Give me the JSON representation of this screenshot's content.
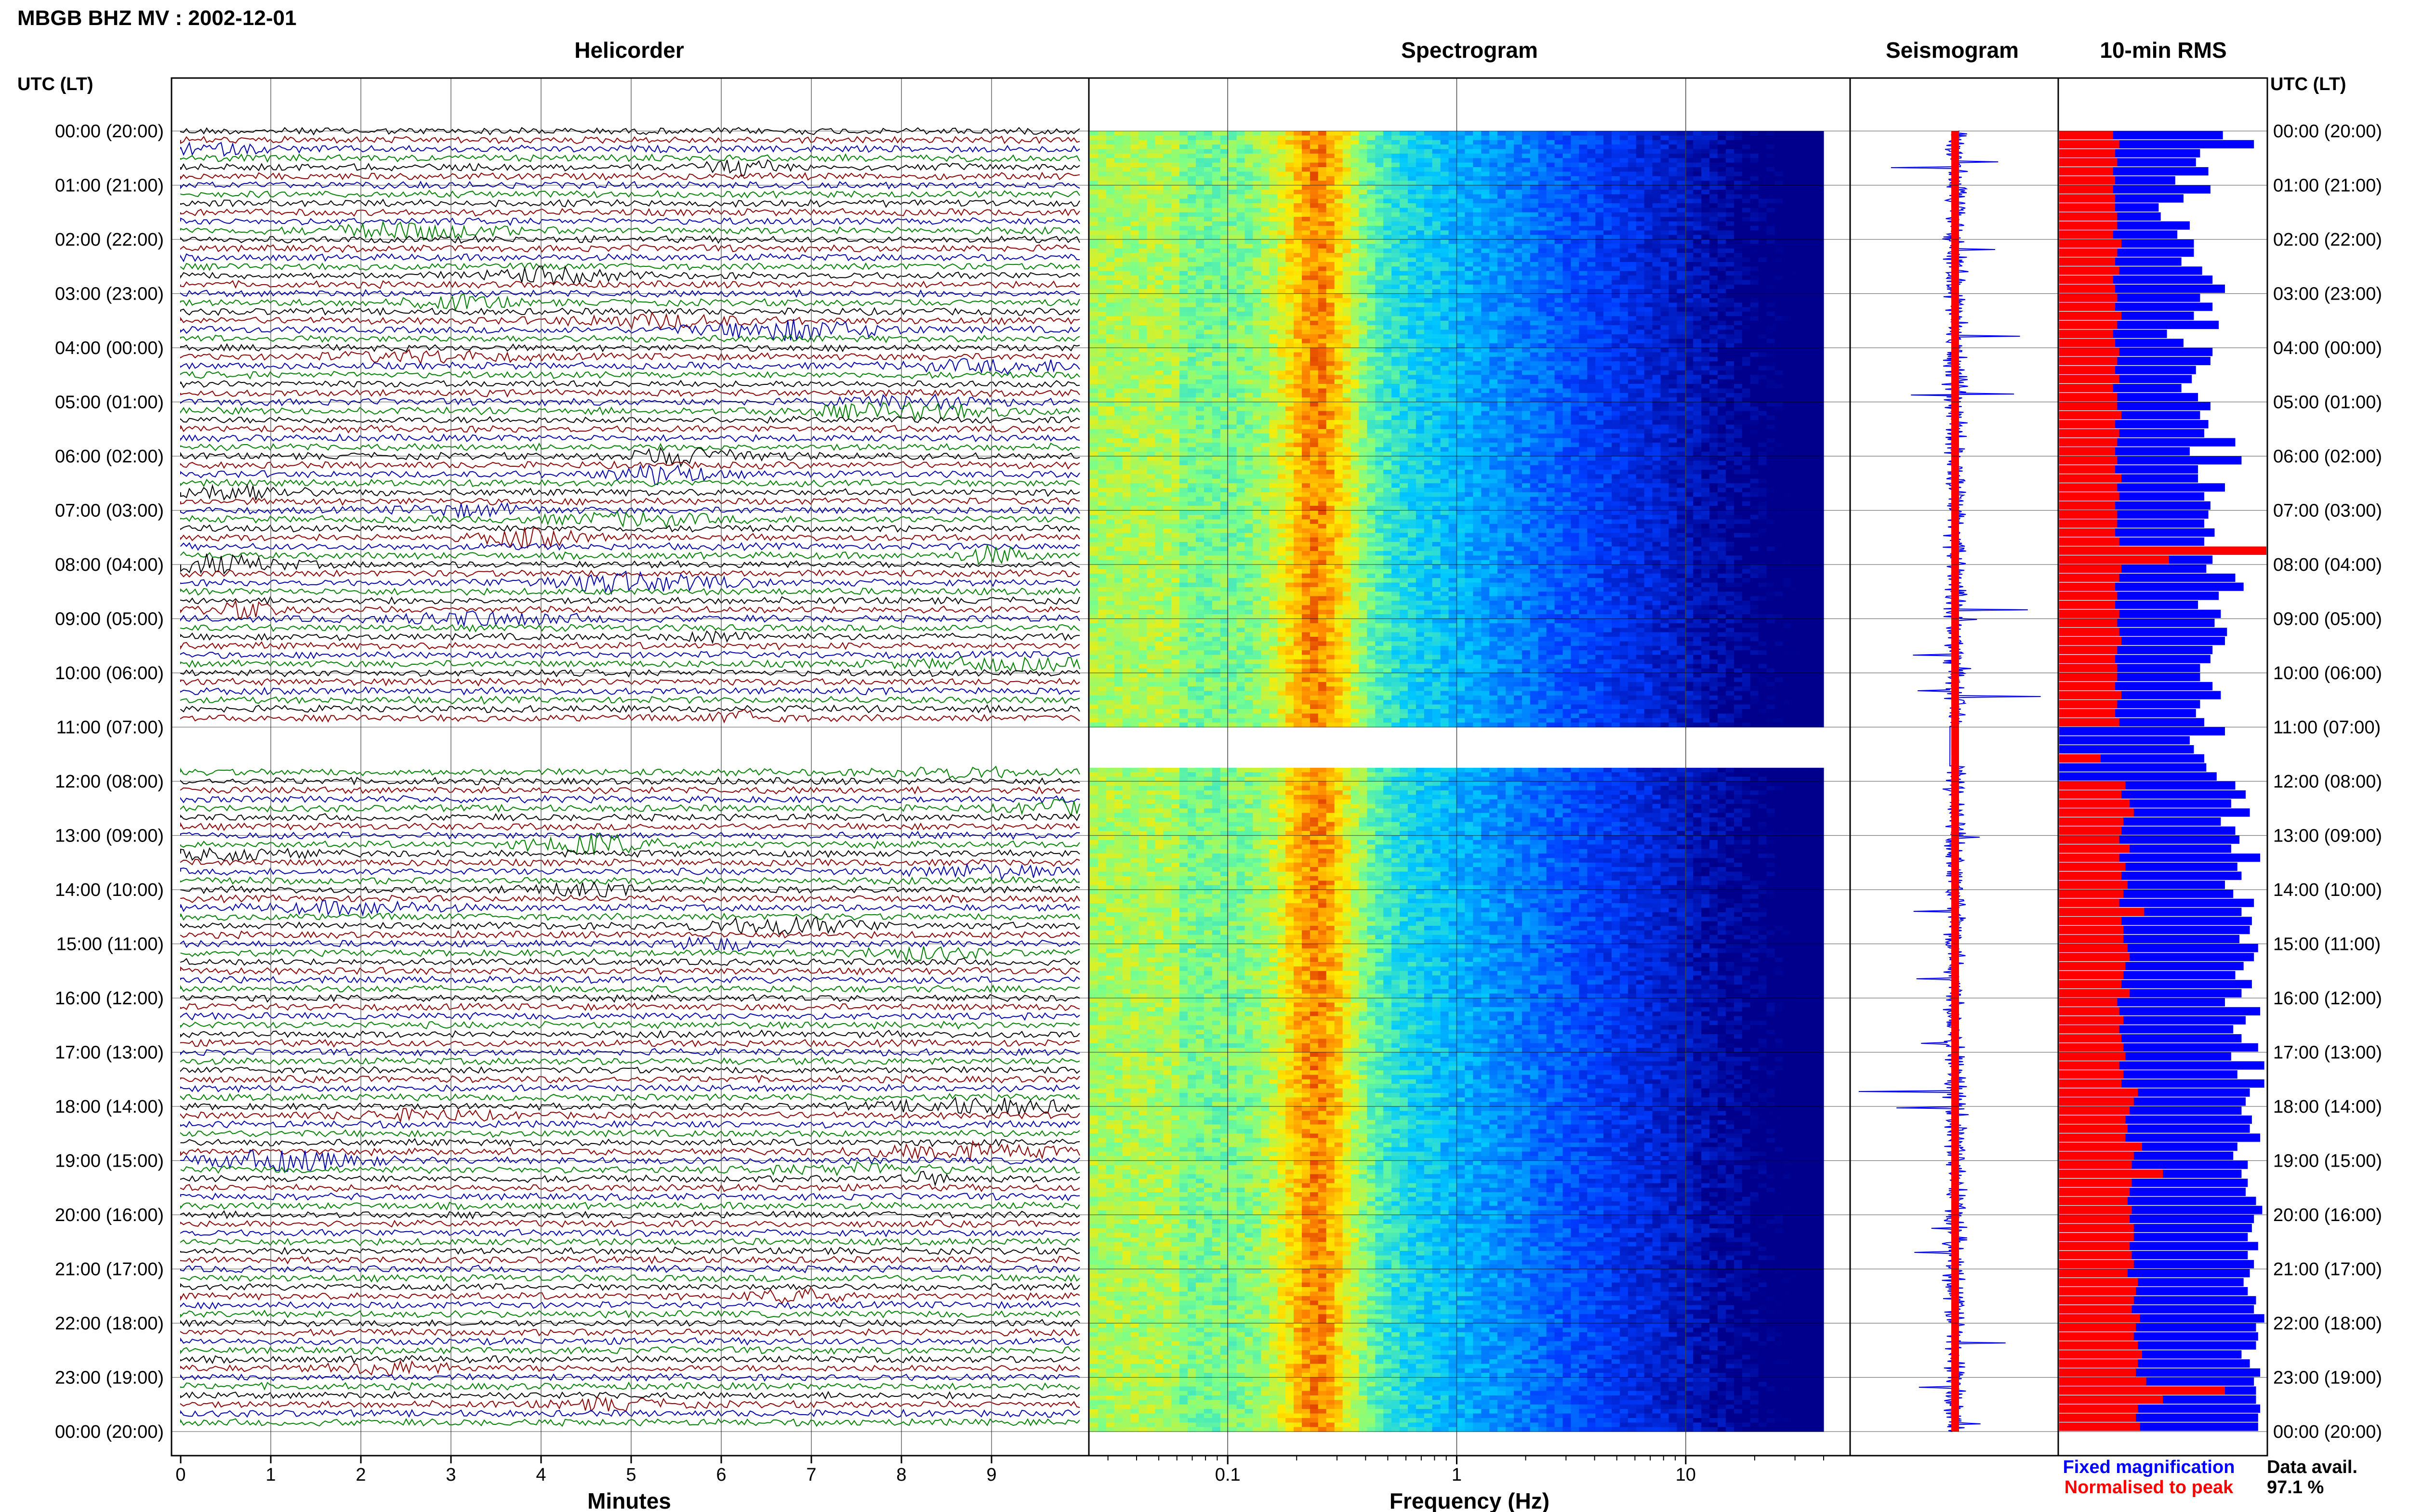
{
  "title": "MBGB BHZ MV : 2002-12-01",
  "panels": {
    "helicorder": "Helicorder",
    "spectrogram": "Spectrogram",
    "seismogram": "Seismogram",
    "rms": "10-min RMS"
  },
  "left_axis_title": "UTC (LT)",
  "right_axis_title": "UTC (LT)",
  "legend": {
    "fixed": "Fixed magnification",
    "normalised": "Normalised to peak",
    "fixed_color": "#0000ff",
    "normalised_color": "#ff0000"
  },
  "data_availability": {
    "label": "Data avail.",
    "value": "97.1 %"
  },
  "chart_data": [
    {
      "type": "line",
      "panel": "helicorder",
      "xlabel": "Minutes",
      "x_ticks": [
        "0",
        "1",
        "2",
        "3",
        "4",
        "5",
        "6",
        "7",
        "8",
        "9"
      ],
      "xlim": [
        0,
        10
      ],
      "y_ticks": [
        "00:00 (20:00)",
        "01:00 (21:00)",
        "02:00 (22:00)",
        "03:00 (23:00)",
        "04:00 (00:00)",
        "05:00 (01:00)",
        "06:00 (02:00)",
        "07:00 (03:00)",
        "08:00 (04:00)",
        "09:00 (05:00)",
        "10:00 (06:00)",
        "11:00 (07:00)",
        "12:00 (08:00)",
        "13:00 (09:00)",
        "14:00 (10:00)",
        "15:00 (11:00)",
        "16:00 (12:00)",
        "17:00 (13:00)",
        "18:00 (14:00)",
        "19:00 (15:00)",
        "20:00 (16:00)",
        "21:00 (17:00)",
        "22:00 (18:00)",
        "23:00 (19:00)",
        "00:00 (20:00)"
      ],
      "trace_colors": [
        "#000000",
        "#8b0000",
        "#0000aa",
        "#008000"
      ],
      "traces_per_hour": 6,
      "data_gaps_hours": [
        [
          11.0,
          11.7
        ]
      ]
    },
    {
      "type": "heatmap",
      "panel": "spectrogram",
      "xlabel": "Frequency (Hz)",
      "x_scale": "log",
      "x_ticks": [
        "0.1",
        "1",
        "10"
      ],
      "xlim": [
        0.025,
        40
      ],
      "peak_frequency_hz": 0.25
    },
    {
      "type": "line",
      "panel": "seismogram"
    },
    {
      "type": "bar",
      "panel": "rms",
      "series": [
        {
          "name": "Fixed magnification",
          "color": "#0000ff",
          "values": [
            0.79,
            0.94,
            0.68,
            0.66,
            0.72,
            0.56,
            0.73,
            0.6,
            0.48,
            0.49,
            0.63,
            0.57,
            0.65,
            0.65,
            0.59,
            0.69,
            0.74,
            0.8,
            0.68,
            0.74,
            0.65,
            0.77,
            0.52,
            0.6,
            0.74,
            0.73,
            0.66,
            0.64,
            0.59,
            0.67,
            0.73,
            0.68,
            0.72,
            0.7,
            0.85,
            0.63,
            0.88,
            0.67,
            0.67,
            0.8,
            0.7,
            0.73,
            0.72,
            0.7,
            0.75,
            0.7,
            1.0,
            0.74,
            0.71,
            0.85,
            0.89,
            0.77,
            0.67,
            0.78,
            0.75,
            0.81,
            0.8,
            0.74,
            0.73,
            0.68,
            0.68,
            0.74,
            0.78,
            0.68,
            0.66,
            0.7,
            0.8,
            0.63,
            0.65,
            0.7,
            0.71,
            0.76,
            0.85,
            0.9,
            0.83,
            0.92,
            0.78,
            0.85,
            0.87,
            0.83,
            0.97,
            0.86,
            0.88,
            0.8,
            0.84,
            0.94,
            0.88,
            0.93,
            0.92,
            0.87,
            0.96,
            0.94,
            0.89,
            0.85,
            0.93,
            0.88,
            0.8,
            0.97,
            0.9,
            0.84,
            0.88,
            0.96,
            0.83,
            0.99,
            0.86,
            0.99,
            0.92,
            0.9,
            0.88,
            0.93,
            0.92,
            0.97,
            0.86,
            0.84,
            0.91,
            0.88,
            0.91,
            0.9,
            0.95,
            0.98,
            0.94,
            0.93,
            0.91,
            0.96,
            0.91,
            0.94,
            0.92,
            0.89,
            0.91,
            0.95,
            0.94,
            0.99,
            0.95,
            0.96,
            0.95,
            0.88,
            0.92,
            0.97,
            0.94,
            0.95,
            0.95,
            0.97,
            0.96,
            0.96
          ]
        },
        {
          "name": "Normalised to peak",
          "color": "#ff0000",
          "values": [
            0.26,
            0.29,
            0.27,
            0.28,
            0.26,
            0.27,
            0.26,
            0.27,
            0.27,
            0.28,
            0.28,
            0.26,
            0.3,
            0.28,
            0.27,
            0.29,
            0.26,
            0.27,
            0.28,
            0.27,
            0.3,
            0.28,
            0.26,
            0.27,
            0.29,
            0.28,
            0.27,
            0.29,
            0.26,
            0.28,
            0.28,
            0.3,
            0.27,
            0.29,
            0.28,
            0.27,
            0.28,
            0.27,
            0.3,
            0.28,
            0.29,
            0.27,
            0.28,
            0.28,
            0.27,
            0.29,
            1.0,
            0.53,
            0.3,
            0.29,
            0.27,
            0.28,
            0.27,
            0.29,
            0.28,
            0.29,
            0.3,
            0.28,
            0.27,
            0.28,
            0.28,
            0.27,
            0.3,
            0.28,
            0.27,
            0.29,
            0.0,
            0.0,
            0.0,
            0.2,
            0.0,
            0.0,
            0.32,
            0.3,
            0.34,
            0.36,
            0.31,
            0.3,
            0.29,
            0.34,
            0.29,
            0.32,
            0.3,
            0.33,
            0.31,
            0.29,
            0.41,
            0.3,
            0.31,
            0.31,
            0.33,
            0.34,
            0.32,
            0.31,
            0.3,
            0.34,
            0.28,
            0.29,
            0.31,
            0.29,
            0.3,
            0.31,
            0.32,
            0.29,
            0.31,
            0.3,
            0.38,
            0.36,
            0.34,
            0.32,
            0.33,
            0.32,
            0.4,
            0.36,
            0.35,
            0.5,
            0.35,
            0.34,
            0.33,
            0.35,
            0.34,
            0.36,
            0.36,
            0.34,
            0.35,
            0.36,
            0.33,
            0.38,
            0.37,
            0.36,
            0.35,
            0.39,
            0.37,
            0.36,
            0.38,
            0.4,
            0.38,
            0.37,
            0.42,
            0.8,
            0.5,
            0.38,
            0.37,
            0.39
          ]
        }
      ]
    }
  ]
}
